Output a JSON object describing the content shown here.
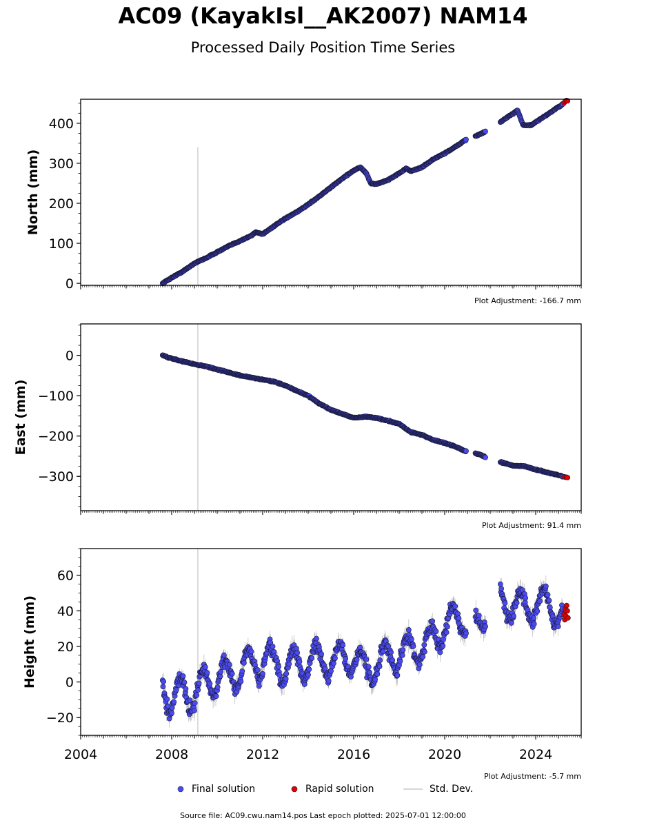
{
  "title": "AC09 (KayakIsl__AK2007) NAM14",
  "subtitle": "Processed Daily Position Time Series",
  "colors": {
    "final": "#4a4af0",
    "rapid": "#e00000",
    "stddev": "#c8c8c8",
    "edge": "#1a1a3a"
  },
  "legend": {
    "final": "Final solution",
    "rapid": "Rapid solution",
    "stddev": "Std. Dev."
  },
  "footer": "Source file: AC09.cwu.nam14.pos  Last epoch plotted: 2025-07-01 12:00:00",
  "chart_data": [
    {
      "type": "scatter",
      "ylabel": "North (mm)",
      "adjustment": "Plot Adjustment: -166.7 mm",
      "xlim": [
        2004.0,
        2026.0
      ],
      "ylim": [
        -5,
        460
      ],
      "yticks": [
        0,
        100,
        200,
        300,
        400
      ],
      "ytick_labels": [
        "0",
        "100",
        "200",
        "300",
        "400"
      ],
      "xticks": [
        2004,
        2008,
        2012,
        2016,
        2020,
        2024
      ],
      "xtick_labels": [],
      "antenna_change_year": 2009.15,
      "antenna_change_ymax": 340,
      "std_width": 1.5,
      "final_series": [
        [
          2007.6,
          0
        ],
        [
          2008.0,
          14
        ],
        [
          2008.5,
          30
        ],
        [
          2009.0,
          50
        ],
        [
          2009.5,
          63
        ],
        [
          2010.0,
          78
        ],
        [
          2010.5,
          93
        ],
        [
          2011.0,
          106
        ],
        [
          2011.5,
          119
        ],
        [
          2011.7,
          128
        ],
        [
          2012.0,
          123
        ],
        [
          2012.5,
          143
        ],
        [
          2013.0,
          162
        ],
        [
          2013.5,
          178
        ],
        [
          2014.0,
          197
        ],
        [
          2014.5,
          218
        ],
        [
          2015.0,
          240
        ],
        [
          2015.5,
          262
        ],
        [
          2016.0,
          282
        ],
        [
          2016.3,
          290
        ],
        [
          2016.55,
          275
        ],
        [
          2016.75,
          250
        ],
        [
          2017.0,
          248
        ],
        [
          2017.5,
          258
        ],
        [
          2018.0,
          275
        ],
        [
          2018.3,
          287
        ],
        [
          2018.5,
          280
        ],
        [
          2019.0,
          290
        ],
        [
          2019.5,
          310
        ],
        [
          2020.0,
          325
        ],
        [
          2020.5,
          342
        ],
        [
          2020.9,
          358
        ],
        [
          2021.5,
          371
        ],
        [
          2021.75,
          378
        ],
        [
          2022.5,
          405
        ],
        [
          2023.0,
          424
        ],
        [
          2023.2,
          433
        ],
        [
          2023.45,
          395
        ],
        [
          2023.8,
          395
        ],
        [
          2024.2,
          410
        ],
        [
          2024.8,
          433
        ],
        [
          2025.2,
          448
        ]
      ],
      "segments": [
        [
          2007.6,
          2020.95
        ],
        [
          2021.35,
          2021.8
        ],
        [
          2022.45,
          2025.2
        ]
      ],
      "rapid": [
        [
          2025.25,
          451
        ],
        [
          2025.3,
          455
        ],
        [
          2025.35,
          457
        ],
        [
          2025.4,
          456
        ]
      ]
    },
    {
      "type": "scatter",
      "ylabel": "East (mm)",
      "adjustment": "Plot Adjustment: 91.4 mm",
      "xlim": [
        2004.0,
        2026.0
      ],
      "ylim": [
        -385,
        78
      ],
      "yticks": [
        0,
        -100,
        -200,
        -300
      ],
      "ytick_labels": [
        "0",
        "−100",
        "−200",
        "−300"
      ],
      "xticks": [
        2004,
        2008,
        2012,
        2016,
        2020,
        2024
      ],
      "xtick_labels": [],
      "antenna_change_year": 2009.15,
      "antenna_change_ymax": 78,
      "std_width": 1.5,
      "final_series": [
        [
          2007.6,
          0
        ],
        [
          2008.0,
          -8
        ],
        [
          2008.5,
          -15
        ],
        [
          2009.0,
          -22
        ],
        [
          2009.5,
          -27
        ],
        [
          2010.0,
          -35
        ],
        [
          2010.5,
          -42
        ],
        [
          2011.0,
          -50
        ],
        [
          2011.5,
          -55
        ],
        [
          2012.0,
          -60
        ],
        [
          2012.5,
          -65
        ],
        [
          2013.0,
          -75
        ],
        [
          2013.5,
          -88
        ],
        [
          2014.0,
          -100
        ],
        [
          2014.5,
          -120
        ],
        [
          2015.0,
          -135
        ],
        [
          2015.5,
          -145
        ],
        [
          2016.0,
          -155
        ],
        [
          2016.5,
          -152
        ],
        [
          2017.0,
          -155
        ],
        [
          2017.5,
          -162
        ],
        [
          2018.0,
          -170
        ],
        [
          2018.5,
          -190
        ],
        [
          2019.0,
          -197
        ],
        [
          2019.5,
          -210
        ],
        [
          2020.0,
          -217
        ],
        [
          2020.5,
          -227
        ],
        [
          2020.9,
          -237
        ],
        [
          2021.5,
          -245
        ],
        [
          2021.8,
          -253
        ],
        [
          2022.5,
          -265
        ],
        [
          2023.0,
          -273
        ],
        [
          2023.5,
          -275
        ],
        [
          2024.0,
          -283
        ],
        [
          2024.5,
          -290
        ],
        [
          2025.2,
          -300
        ]
      ],
      "segments": [
        [
          2007.6,
          2020.95
        ],
        [
          2021.35,
          2021.8
        ],
        [
          2022.45,
          2025.2
        ]
      ],
      "rapid": [
        [
          2025.25,
          -301
        ],
        [
          2025.3,
          -302
        ],
        [
          2025.35,
          -302
        ],
        [
          2025.4,
          -303
        ]
      ]
    },
    {
      "type": "scatter",
      "ylabel": "Height (mm)",
      "adjustment": "Plot Adjustment: -5.7 mm",
      "xlim": [
        2004.0,
        2026.0
      ],
      "ylim": [
        -30,
        75
      ],
      "yticks": [
        60,
        40,
        20,
        0,
        -20
      ],
      "ytick_labels": [
        "60",
        "40",
        "20",
        "0",
        "−20"
      ],
      "xticks": [
        2004,
        2008,
        2012,
        2016,
        2020,
        2024
      ],
      "xtick_labels": [
        "2004",
        "2008",
        "2012",
        "2016",
        "2020",
        "2024"
      ],
      "antenna_change_year": 2009.15,
      "antenna_change_ymax": 75,
      "std_width": 12,
      "final_series": [
        [
          2007.6,
          0
        ],
        [
          2008.0,
          -10
        ],
        [
          2008.5,
          -5
        ],
        [
          2009.0,
          -8
        ],
        [
          2009.5,
          0
        ],
        [
          2010.0,
          2
        ],
        [
          2010.5,
          4
        ],
        [
          2011.0,
          6
        ],
        [
          2011.5,
          10
        ],
        [
          2012.0,
          12
        ],
        [
          2012.5,
          10
        ],
        [
          2013.0,
          8
        ],
        [
          2013.5,
          10
        ],
        [
          2014.0,
          11
        ],
        [
          2014.5,
          12
        ],
        [
          2015.0,
          12
        ],
        [
          2015.5,
          13
        ],
        [
          2016.0,
          14
        ],
        [
          2016.5,
          6
        ],
        [
          2017.0,
          10
        ],
        [
          2017.5,
          14
        ],
        [
          2018.0,
          16
        ],
        [
          2018.5,
          18
        ],
        [
          2019.0,
          20
        ],
        [
          2019.5,
          24
        ],
        [
          2020.0,
          32
        ],
        [
          2020.5,
          34
        ],
        [
          2020.9,
          36
        ],
        [
          2021.5,
          28
        ],
        [
          2021.8,
          40
        ],
        [
          2022.5,
          46
        ],
        [
          2023.0,
          44
        ],
        [
          2023.5,
          42
        ],
        [
          2024.0,
          44
        ],
        [
          2024.5,
          43
        ],
        [
          2025.2,
          38
        ]
      ],
      "seasonal_amp": 9,
      "segments": [
        [
          2007.6,
          2020.95
        ],
        [
          2021.35,
          2021.8
        ],
        [
          2022.45,
          2025.2
        ]
      ],
      "rapid": [
        [
          2025.25,
          38
        ],
        [
          2025.28,
          35
        ],
        [
          2025.3,
          41
        ],
        [
          2025.33,
          37
        ],
        [
          2025.36,
          43
        ],
        [
          2025.39,
          40
        ],
        [
          2025.42,
          36
        ]
      ]
    }
  ]
}
